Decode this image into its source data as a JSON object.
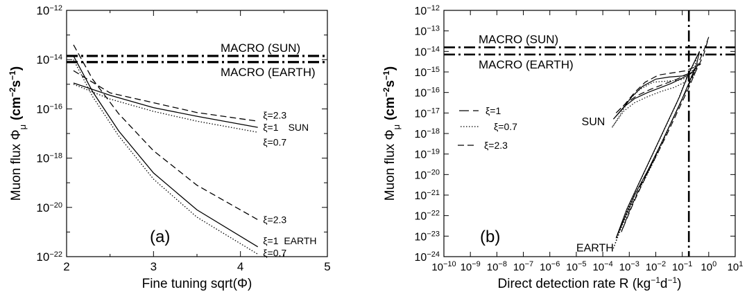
{
  "chart_data": [
    {
      "type": "line",
      "panel_label": "(a)",
      "xlabel": "Fine tuning  sqrt(Φ)",
      "ylabel_main": "Muon flux  Φ",
      "ylabel_sub": "μ",
      "ylabel_units": "(cm",
      "ylabel_exp1": "−2",
      "ylabel_mid": "s",
      "ylabel_exp2": "−1",
      "ylabel_close": ")",
      "xlim": [
        2,
        5
      ],
      "ylim_exp": [
        -22,
        -12
      ],
      "ylog": true,
      "grid": false,
      "x_ticks": [
        {
          "v": 2,
          "t": "2"
        },
        {
          "v": 3,
          "t": "3"
        },
        {
          "v": 4,
          "t": "4"
        },
        {
          "v": 5,
          "t": "5"
        }
      ],
      "y_ticks": [
        {
          "e": -12,
          "b": "10",
          "s": "−12"
        },
        {
          "e": -14,
          "b": "10",
          "s": "−14"
        },
        {
          "e": -16,
          "b": "10",
          "s": "−16"
        },
        {
          "e": -18,
          "b": "10",
          "s": "−18"
        },
        {
          "e": -20,
          "b": "10",
          "s": "−20"
        },
        {
          "e": -22,
          "b": "10",
          "s": "−22"
        }
      ],
      "hlines": [
        {
          "label": "MACRO  (SUN)",
          "y_exp": -13.85,
          "style": "dashdot"
        },
        {
          "label": "MACRO  (EARTH)",
          "y_exp": -14.1,
          "style": "dashdot"
        }
      ],
      "series": [
        {
          "group": "SUN",
          "style": "dashed",
          "x": [
            2.08,
            2.5,
            3.0,
            3.5,
            4.2
          ],
          "y_exp": [
            -14.45,
            -15.35,
            -15.75,
            -16.15,
            -16.5
          ]
        },
        {
          "group": "SUN",
          "style": "solid",
          "x": [
            2.08,
            2.5,
            3.0,
            3.5,
            4.2
          ],
          "y_exp": [
            -14.95,
            -15.45,
            -15.95,
            -16.3,
            -16.75
          ]
        },
        {
          "group": "SUN",
          "style": "dotted",
          "x": [
            2.08,
            2.5,
            3.0,
            3.5,
            4.2
          ],
          "y_exp": [
            -15.0,
            -15.6,
            -16.1,
            -16.5,
            -16.95
          ]
        },
        {
          "group": "EARTH",
          "style": "dashed",
          "x": [
            2.08,
            2.3,
            2.6,
            3.0,
            3.5,
            4.2
          ],
          "y_exp": [
            -13.4,
            -14.8,
            -16.2,
            -17.7,
            -19.1,
            -20.5
          ]
        },
        {
          "group": "EARTH",
          "style": "solid",
          "x": [
            2.08,
            2.3,
            2.6,
            3.0,
            3.5,
            4.2
          ],
          "y_exp": [
            -13.85,
            -15.3,
            -16.9,
            -18.6,
            -20.1,
            -21.6
          ]
        },
        {
          "group": "EARTH",
          "style": "dotted",
          "x": [
            2.08,
            2.3,
            2.6,
            3.0,
            3.5,
            4.2
          ],
          "y_exp": [
            -14.0,
            -15.5,
            -17.1,
            -18.85,
            -20.4,
            -21.9
          ]
        }
      ],
      "annotations": [
        {
          "text": "ξ=2.3",
          "x": 4.26,
          "y_exp": -16.25
        },
        {
          "text": "ξ=1",
          "x": 4.26,
          "y_exp": -16.75
        },
        {
          "text": "SUN",
          "x": 4.55,
          "y_exp": -16.75
        },
        {
          "text": "ξ=0.7",
          "x": 4.26,
          "y_exp": -17.35
        },
        {
          "text": "ξ=2.3",
          "x": 4.26,
          "y_exp": -20.5
        },
        {
          "text": "ξ=1",
          "x": 4.26,
          "y_exp": -21.35
        },
        {
          "text": "EARTH",
          "x": 4.5,
          "y_exp": -21.35
        },
        {
          "text": "ξ=0.7",
          "x": 4.26,
          "y_exp": -21.85
        }
      ]
    },
    {
      "type": "line",
      "panel_label": "(b)",
      "xlabel_main": "Direct detection rate  R  (kg",
      "xlabel_exp1": "−1",
      "xlabel_mid": "d",
      "xlabel_exp2": "−1",
      "xlabel_close": ")",
      "ylabel_main": "Muon flux  Φ",
      "ylabel_sub": "μ",
      "ylabel_units": "(cm",
      "ylabel_exp1": "−2",
      "ylabel_mid": "s",
      "ylabel_exp2": "−1",
      "ylabel_close": ")",
      "xlog": true,
      "ylog": true,
      "xlim_exp": [
        -10,
        1
      ],
      "ylim_exp": [
        -24,
        -12
      ],
      "grid": false,
      "x_ticks": [
        {
          "e": -10,
          "b": "10",
          "s": "−10"
        },
        {
          "e": -9,
          "b": "10",
          "s": "−9"
        },
        {
          "e": -8,
          "b": "10",
          "s": "−8"
        },
        {
          "e": -7,
          "b": "10",
          "s": "−7"
        },
        {
          "e": -6,
          "b": "10",
          "s": "−6"
        },
        {
          "e": -5,
          "b": "10",
          "s": "−5"
        },
        {
          "e": -4,
          "b": "10",
          "s": "−4"
        },
        {
          "e": -3,
          "b": "10",
          "s": "−3"
        },
        {
          "e": -2,
          "b": "10",
          "s": "−2"
        },
        {
          "e": -1,
          "b": "10",
          "s": "−1"
        },
        {
          "e": 0,
          "b": "10",
          "s": "0"
        },
        {
          "e": 1,
          "b": "10",
          "s": "1"
        }
      ],
      "y_ticks": [
        {
          "e": -12,
          "b": "10",
          "s": "−12"
        },
        {
          "e": -13,
          "b": "10",
          "s": "−13"
        },
        {
          "e": -14,
          "b": "10",
          "s": "−14"
        },
        {
          "e": -15,
          "b": "10",
          "s": "−15"
        },
        {
          "e": -16,
          "b": "10",
          "s": "−16"
        },
        {
          "e": -17,
          "b": "10",
          "s": "−17"
        },
        {
          "e": -18,
          "b": "10",
          "s": "−18"
        },
        {
          "e": -19,
          "b": "10",
          "s": "−19"
        },
        {
          "e": -20,
          "b": "10",
          "s": "−20"
        },
        {
          "e": -21,
          "b": "10",
          "s": "−21"
        },
        {
          "e": -22,
          "b": "10",
          "s": "−22"
        },
        {
          "e": -23,
          "b": "10",
          "s": "−23"
        },
        {
          "e": -24,
          "b": "10",
          "s": "−24"
        }
      ],
      "hlines": [
        {
          "label": "MACRO  (SUN)",
          "y_exp": -13.8,
          "style": "dashdot"
        },
        {
          "label": "MACRO  (EARTH)",
          "y_exp": -14.15,
          "style": "dashdot"
        }
      ],
      "vline": {
        "x_exp": -0.75,
        "style": "dashdot"
      },
      "legend": {
        "position": "left",
        "entries": [
          {
            "label": "ξ=1",
            "style": "solid-long-dash"
          },
          {
            "label": "ξ=0.7",
            "style": "dotted"
          },
          {
            "label": "ξ=2.3",
            "style": "dashed"
          }
        ]
      },
      "series": [
        {
          "group": "SUN",
          "name": "ξ=1",
          "style": "solid",
          "x_exp": [
            -3.6,
            -3.2,
            -2.8,
            -2.3,
            -1.8,
            -1.4,
            -1.0,
            -0.7,
            -0.5,
            -0.6,
            -1.0,
            -1.5,
            -2.0,
            -2.5,
            -2.9,
            -3.25,
            -3.6
          ],
          "y_exp": [
            -17.3,
            -16.7,
            -16.3,
            -16.0,
            -15.75,
            -15.55,
            -15.3,
            -15.1,
            -14.9,
            -15.0,
            -15.2,
            -15.25,
            -15.35,
            -15.7,
            -16.2,
            -16.8,
            -17.3
          ]
        },
        {
          "group": "SUN",
          "name": "ξ=0.7",
          "style": "dotted",
          "x_exp": [
            -3.65,
            -3.2,
            -2.8,
            -2.3,
            -1.8,
            -1.3,
            -0.9,
            -0.65,
            -0.5,
            -0.65,
            -1.1,
            -1.6,
            -2.1,
            -2.6,
            -3.0,
            -3.3,
            -3.65
          ],
          "y_exp": [
            -17.7,
            -16.9,
            -16.5,
            -16.2,
            -15.95,
            -15.75,
            -15.5,
            -15.3,
            -15.1,
            -15.2,
            -15.4,
            -15.45,
            -15.5,
            -15.85,
            -16.35,
            -17.0,
            -17.7
          ]
        },
        {
          "group": "SUN",
          "name": "ξ=2.3",
          "style": "dashed",
          "x_exp": [
            -3.5,
            -3.1,
            -2.7,
            -2.2,
            -1.7,
            -1.2,
            -0.8,
            -0.5,
            -0.3,
            -0.5,
            -0.9,
            -1.4,
            -1.9,
            -2.4,
            -2.8,
            -3.15,
            -3.5
          ],
          "y_exp": [
            -17.0,
            -16.5,
            -16.15,
            -15.85,
            -15.6,
            -15.35,
            -15.1,
            -14.85,
            -14.6,
            -14.75,
            -14.95,
            -15.05,
            -15.15,
            -15.5,
            -16.0,
            -16.55,
            -17.0
          ]
        },
        {
          "group": "EARTH",
          "name": "ξ=1",
          "style": "solid",
          "x_exp": [
            -3.5,
            -3.2,
            -2.8,
            -2.3,
            -1.8,
            -1.4,
            -1.0,
            -0.7,
            -0.45,
            -0.35,
            -0.5,
            -0.8,
            -1.1,
            -1.5,
            -1.9,
            -2.3,
            -2.7,
            -3.1,
            -3.5
          ],
          "y_exp": [
            -23.1,
            -22.2,
            -21.0,
            -19.8,
            -18.5,
            -17.4,
            -16.3,
            -15.4,
            -14.6,
            -14.0,
            -14.4,
            -15.2,
            -16.2,
            -17.3,
            -18.4,
            -19.5,
            -20.6,
            -21.7,
            -23.1
          ]
        },
        {
          "group": "EARTH",
          "name": "ξ=0.7",
          "style": "dotted",
          "x_exp": [
            -3.6,
            -3.3,
            -2.9,
            -2.4,
            -1.9,
            -1.5,
            -1.1,
            -0.8,
            -0.55,
            -0.45,
            -0.6,
            -0.9,
            -1.2,
            -1.6,
            -2.0,
            -2.4,
            -2.8,
            -3.2,
            -3.6
          ],
          "y_exp": [
            -23.6,
            -22.6,
            -21.4,
            -20.2,
            -18.9,
            -17.7,
            -16.6,
            -15.7,
            -14.9,
            -14.25,
            -14.7,
            -15.5,
            -16.5,
            -17.6,
            -18.7,
            -19.8,
            -20.9,
            -22.1,
            -23.6
          ]
        },
        {
          "group": "EARTH",
          "name": "ξ=2.3",
          "style": "dashed",
          "x_exp": [
            -3.3,
            -3.0,
            -2.6,
            -2.1,
            -1.6,
            -1.2,
            -0.8,
            -0.5,
            -0.2,
            0.0,
            -0.2,
            -0.5,
            -0.85,
            -1.25,
            -1.65,
            -2.05,
            -2.45,
            -2.85,
            -3.3
          ],
          "y_exp": [
            -22.8,
            -21.8,
            -20.6,
            -19.4,
            -18.1,
            -17.0,
            -15.9,
            -15.0,
            -14.2,
            -13.3,
            -14.0,
            -14.9,
            -15.9,
            -17.0,
            -18.1,
            -19.2,
            -20.3,
            -21.4,
            -22.8
          ]
        }
      ],
      "annotations": [
        {
          "text": "SUN",
          "x_exp": -4.8,
          "y_exp": -17.4
        },
        {
          "text": "EARTH",
          "x_exp": -5.0,
          "y_exp": -23.55
        }
      ]
    }
  ]
}
